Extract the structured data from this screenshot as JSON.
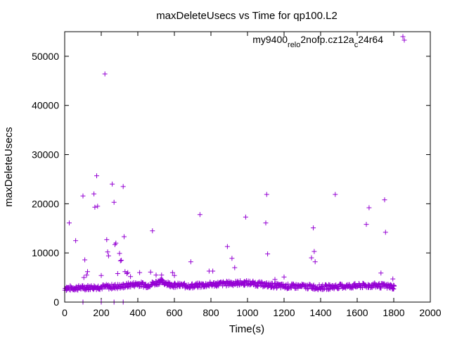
{
  "chart_data": {
    "type": "scatter",
    "title": "maxDeleteUsecs vs Time for qp100.L2",
    "xlabel": "Time(s)",
    "ylabel": "maxDeleteUsecs",
    "xlim": [
      0,
      2000
    ],
    "ylim": [
      0,
      55000
    ],
    "xticks": [
      0,
      200,
      400,
      600,
      800,
      1000,
      1200,
      1400,
      1600,
      1800,
      2000
    ],
    "yticks": [
      0,
      10000,
      20000,
      30000,
      40000,
      50000
    ],
    "grid": false,
    "legend_position": "top-right",
    "marker": "plus",
    "color": "#9400d3",
    "series": [
      {
        "name": "my9400_rel_o2nofp.cz12a_c24r64",
        "name_parts": {
          "base": "my9400",
          "sub1": "rel",
          "sub2": "o",
          "mid": "2nofp.cz12a",
          "sub3": "c",
          "end": "24r64"
        },
        "baseline": {
          "x_start": 0,
          "x_end": 1800,
          "x_step": 5,
          "levels": [
            [
              0,
              2800
            ],
            [
              150,
              3000
            ],
            [
              300,
              3200
            ],
            [
              400,
              3700
            ],
            [
              450,
              3400
            ],
            [
              520,
              4200
            ],
            [
              600,
              3400
            ],
            [
              700,
              3300
            ],
            [
              800,
              3600
            ],
            [
              900,
              3800
            ],
            [
              1000,
              3900
            ],
            [
              1100,
              3500
            ],
            [
              1200,
              3200
            ],
            [
              1300,
              3200
            ],
            [
              1400,
              3000
            ],
            [
              1500,
              3200
            ],
            [
              1600,
              3300
            ],
            [
              1700,
              3400
            ],
            [
              1800,
              3100
            ]
          ],
          "spread": 1000
        },
        "points": [
          [
            10,
            3000
          ],
          [
            25,
            16100
          ],
          [
            60,
            12500
          ],
          [
            100,
            21600
          ],
          [
            110,
            8600
          ],
          [
            105,
            5000
          ],
          [
            120,
            5500
          ],
          [
            125,
            6200
          ],
          [
            160,
            22000
          ],
          [
            165,
            19300
          ],
          [
            175,
            25700
          ],
          [
            180,
            19500
          ],
          [
            200,
            5400
          ],
          [
            220,
            46400
          ],
          [
            230,
            12700
          ],
          [
            235,
            10200
          ],
          [
            240,
            9400
          ],
          [
            260,
            24000
          ],
          [
            270,
            20300
          ],
          [
            275,
            11700
          ],
          [
            280,
            12000
          ],
          [
            290,
            5800
          ],
          [
            300,
            9900
          ],
          [
            305,
            8400
          ],
          [
            310,
            8500
          ],
          [
            320,
            23500
          ],
          [
            325,
            13300
          ],
          [
            330,
            6200
          ],
          [
            340,
            5800
          ],
          [
            345,
            6000
          ],
          [
            360,
            5200
          ],
          [
            410,
            6000
          ],
          [
            470,
            6100
          ],
          [
            480,
            14500
          ],
          [
            500,
            5500
          ],
          [
            530,
            5500
          ],
          [
            590,
            6000
          ],
          [
            600,
            5400
          ],
          [
            690,
            8200
          ],
          [
            740,
            17800
          ],
          [
            790,
            6300
          ],
          [
            810,
            6300
          ],
          [
            890,
            11300
          ],
          [
            915,
            8900
          ],
          [
            930,
            7000
          ],
          [
            990,
            17300
          ],
          [
            1100,
            16100
          ],
          [
            1105,
            21900
          ],
          [
            1110,
            9800
          ],
          [
            1150,
            4600
          ],
          [
            1200,
            5100
          ],
          [
            1350,
            9000
          ],
          [
            1360,
            15100
          ],
          [
            1365,
            10300
          ],
          [
            1370,
            8200
          ],
          [
            1480,
            21900
          ],
          [
            1650,
            15800
          ],
          [
            1665,
            19200
          ],
          [
            1730,
            5900
          ],
          [
            1750,
            20800
          ],
          [
            1755,
            14200
          ],
          [
            1800,
            2700
          ],
          [
            1795,
            4700
          ],
          [
            100,
            0
          ],
          [
            200,
            0
          ],
          [
            270,
            0
          ],
          [
            320,
            0
          ],
          [
            1850,
            54000
          ]
        ]
      }
    ]
  }
}
